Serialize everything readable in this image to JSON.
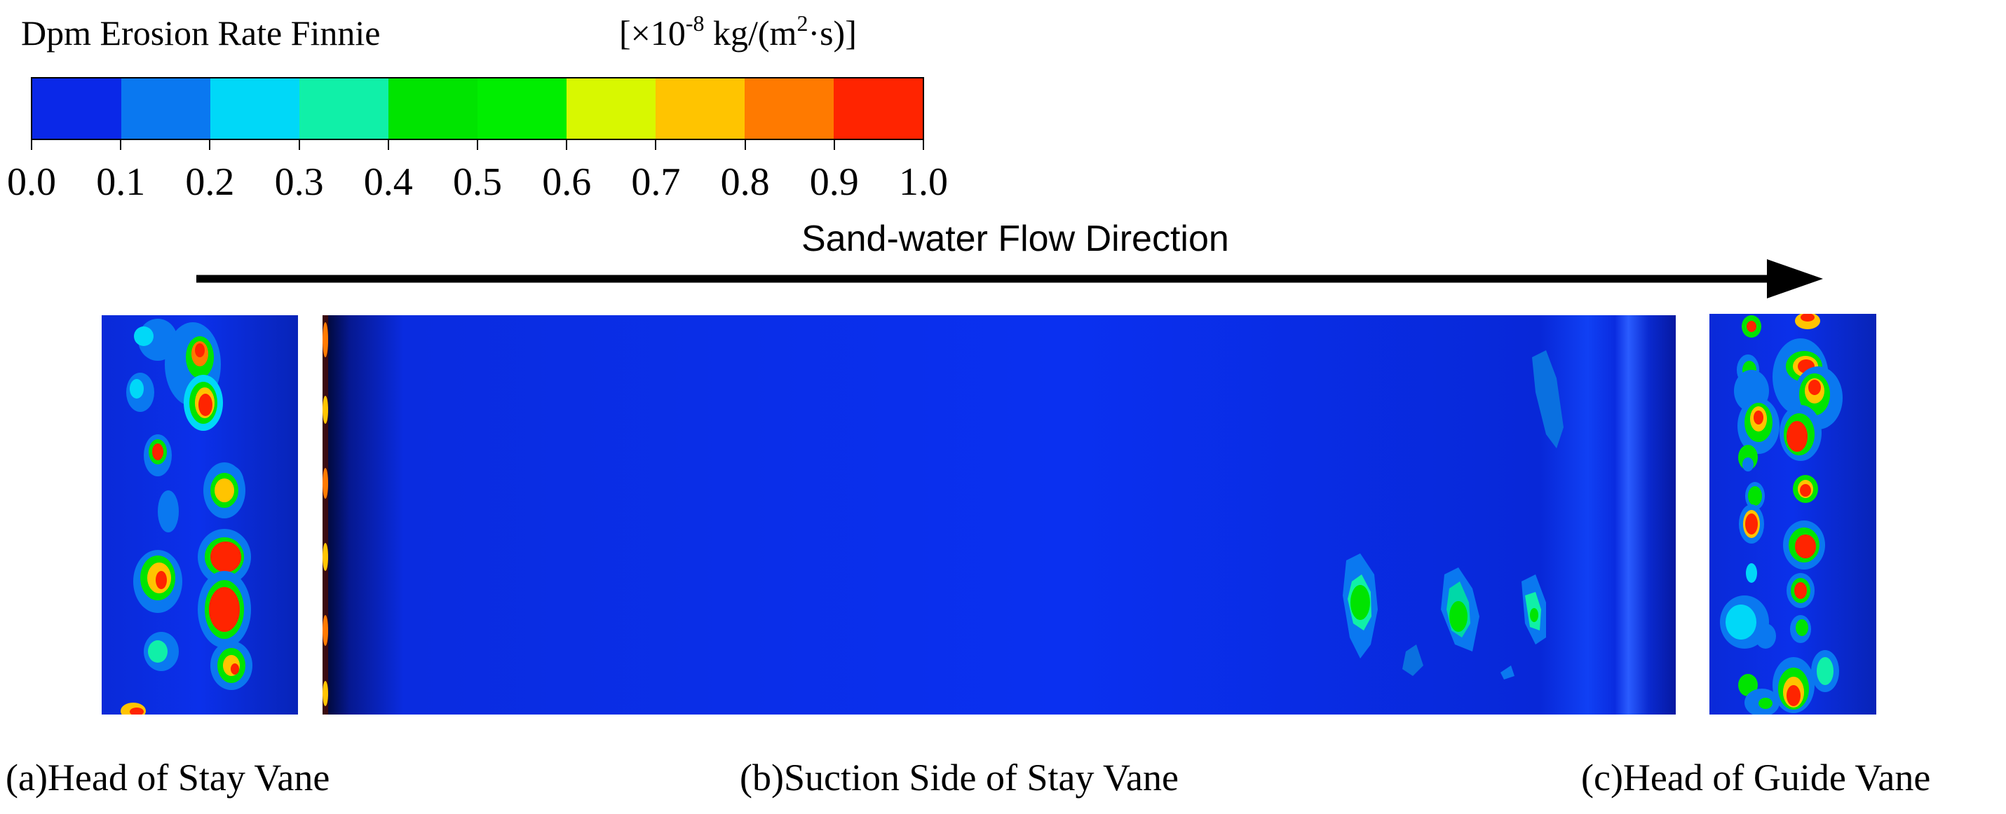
{
  "legend": {
    "title": "Dpm Erosion Rate Finnie",
    "unit_prefix": "[×10",
    "unit_exponent": "-8",
    "unit_mid": " kg/(m",
    "unit_sq": "2",
    "unit_suffix": "·s)]",
    "colors": [
      "#0a28e8",
      "#0a78f0",
      "#00d8f8",
      "#10f0a8",
      "#00e400",
      "#00ee00",
      "#d8f800",
      "#ffc400",
      "#ff7a00",
      "#ff2400"
    ],
    "ticks": [
      "0.0",
      "0.1",
      "0.2",
      "0.3",
      "0.4",
      "0.5",
      "0.6",
      "0.7",
      "0.8",
      "0.9",
      "1.0"
    ]
  },
  "flow": {
    "label": "Sand-water Flow Direction"
  },
  "panels": {
    "a": {
      "caption": "(a)Head of Stay Vane"
    },
    "b": {
      "caption": "(b)Suction Side of Stay Vane"
    },
    "c": {
      "caption": "(c)Head of Guide Vane"
    }
  }
}
